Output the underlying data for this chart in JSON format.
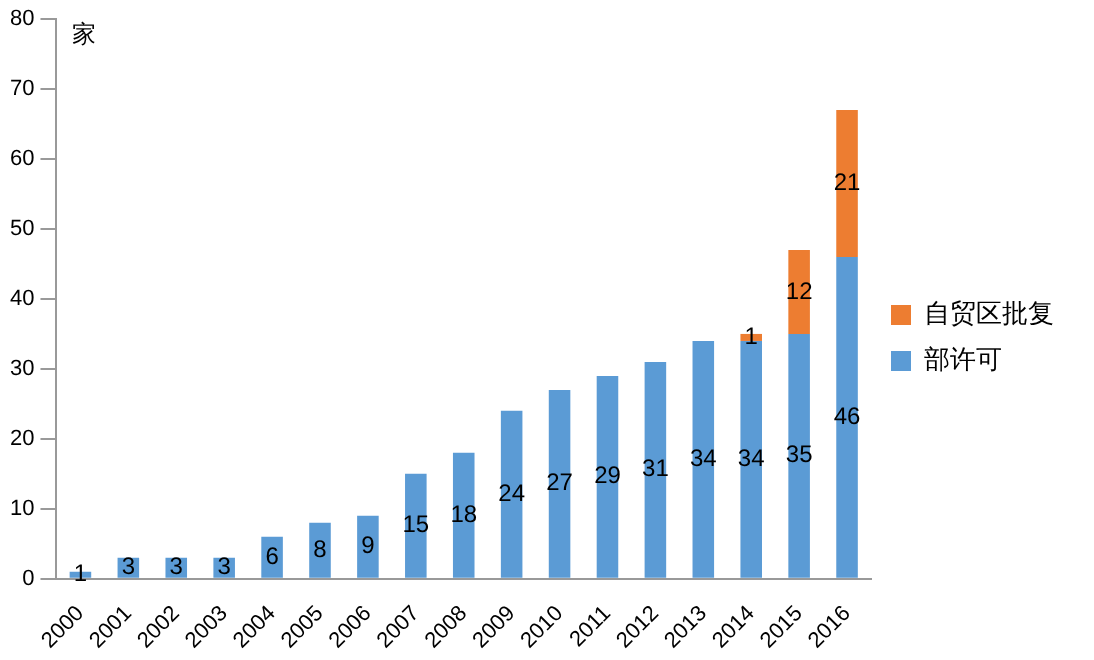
{
  "chart_data": {
    "type": "bar",
    "ylabel": "家",
    "categories": [
      "2000",
      "2001",
      "2002",
      "2003",
      "2004",
      "2005",
      "2006",
      "2007",
      "2008",
      "2009",
      "2010",
      "2011",
      "2012",
      "2013",
      "2014",
      "2015",
      "2016"
    ],
    "series": [
      {
        "name": "部许可",
        "color": "#5b9bd5",
        "values": [
          1,
          3,
          3,
          3,
          6,
          8,
          9,
          15,
          18,
          24,
          27,
          29,
          31,
          34,
          34,
          35,
          46
        ]
      },
      {
        "name": "自贸区批复",
        "color": "#ed7d31",
        "values": [
          null,
          null,
          null,
          null,
          null,
          null,
          null,
          null,
          null,
          null,
          null,
          null,
          null,
          null,
          1,
          12,
          21
        ]
      }
    ],
    "stacked": true,
    "ylim": [
      0,
      80
    ],
    "yticks": [
      0,
      10,
      20,
      30,
      40,
      50,
      60,
      70,
      80
    ],
    "grid": false,
    "legend": "right",
    "data_labels": true
  }
}
